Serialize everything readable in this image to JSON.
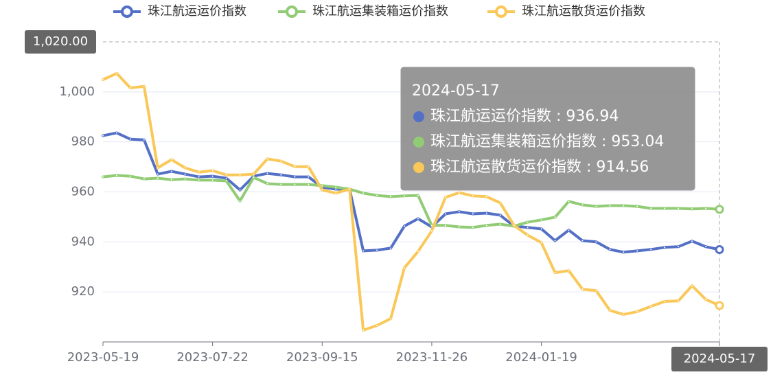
{
  "chart_data": {
    "type": "line",
    "categories": [
      "2023-05-19",
      null,
      null,
      null,
      null,
      null,
      null,
      null,
      "2023-07-22",
      null,
      null,
      null,
      null,
      null,
      null,
      null,
      "2023-09-15",
      null,
      null,
      null,
      null,
      null,
      null,
      null,
      "2023-11-26",
      null,
      null,
      null,
      null,
      null,
      null,
      null,
      "2024-01-19",
      null,
      null,
      null,
      null,
      null,
      null,
      null,
      null,
      null,
      null,
      null,
      null,
      "2024-05-17"
    ],
    "series": [
      {
        "name": "珠江航运运价指数",
        "color": "#5470c6",
        "values": [
          982.5,
          983.6,
          981.1,
          980.8,
          967.1,
          968.2,
          967.1,
          966.0,
          966.3,
          965.5,
          960.8,
          966.3,
          967.4,
          966.8,
          966.0,
          966.0,
          961.9,
          961.1,
          961.1,
          936.4,
          936.7,
          937.5,
          946.3,
          949.3,
          946.0,
          951.2,
          952.1,
          951.2,
          951.5,
          950.7,
          946.3,
          945.8,
          945.2,
          940.5,
          944.7,
          940.5,
          940.0,
          937.0,
          935.9,
          936.4,
          937.0,
          937.8,
          938.1,
          940.3,
          938.1,
          936.94
        ]
      },
      {
        "name": "珠江航运集装箱运价指数",
        "color": "#91cc75",
        "values": [
          966.0,
          966.6,
          966.3,
          965.2,
          965.5,
          964.9,
          965.2,
          964.7,
          964.7,
          964.4,
          956.4,
          965.8,
          963.3,
          963.0,
          963.0,
          963.0,
          962.5,
          961.9,
          961.1,
          959.5,
          958.6,
          958.1,
          958.4,
          958.6,
          946.6,
          946.6,
          946.0,
          945.8,
          946.6,
          947.1,
          946.3,
          947.9,
          948.8,
          949.9,
          956.2,
          954.8,
          954.2,
          954.5,
          954.5,
          954.2,
          953.4,
          953.4,
          953.4,
          953.2,
          953.4,
          953.04
        ]
      },
      {
        "name": "珠江航运散货运价指数",
        "color": "#fac858",
        "values": [
          1004.9,
          1007.4,
          1001.6,
          1002.2,
          969.6,
          972.9,
          969.6,
          967.9,
          968.5,
          966.8,
          966.8,
          967.1,
          973.2,
          972.3,
          970.1,
          970.1,
          960.8,
          959.5,
          961.1,
          904.7,
          906.6,
          909.3,
          929.6,
          936.2,
          944.4,
          957.8,
          959.7,
          958.4,
          958.1,
          955.6,
          946.6,
          942.7,
          939.7,
          927.7,
          928.5,
          921.1,
          920.5,
          912.6,
          911.0,
          912.1,
          914.2,
          916.2,
          916.4,
          922.5,
          917.0,
          914.56
        ]
      }
    ],
    "ylim": [
      900,
      1020
    ],
    "yticks": [
      920,
      940,
      960,
      980,
      {
        "value": 1000,
        "label": "1,000"
      }
    ],
    "grid": true,
    "axis_pointer_y": {
      "value": 1020,
      "label": "1,020.00"
    },
    "tooltip_index": 45
  }
}
